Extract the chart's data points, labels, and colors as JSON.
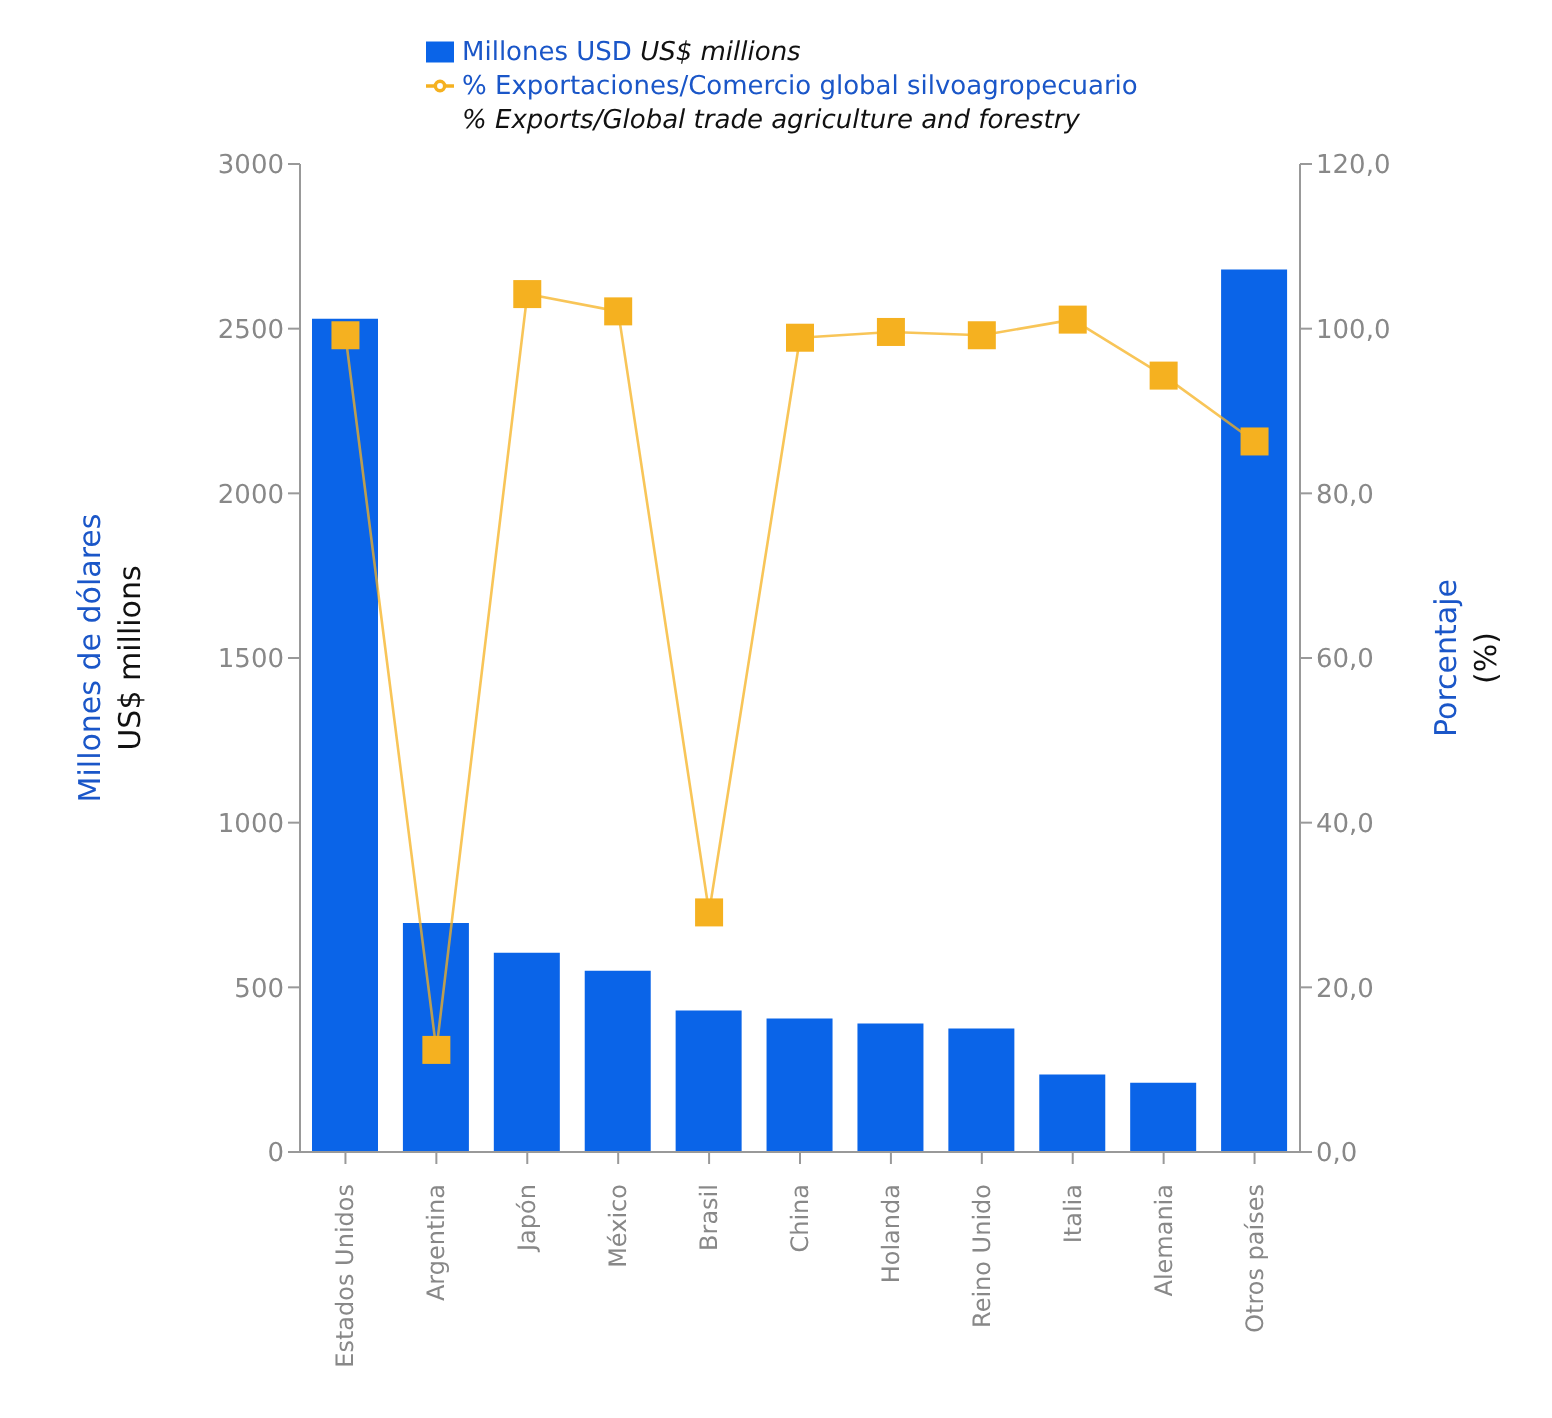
{
  "chart_data": {
    "type": "bar",
    "categories": [
      "Estados Unidos",
      "Argentina",
      "Japón",
      "México",
      "Brasil",
      "China",
      "Holanda",
      "Reino Unido",
      "Italia",
      "Alemania",
      "Otros países"
    ],
    "series": [
      {
        "name": "Millones USD\nUS$ millions",
        "color": "#0a64e8",
        "values": [
          2530,
          695,
          605,
          550,
          430,
          405,
          390,
          375,
          235,
          210,
          2680
        ]
      },
      {
        "name": "% Exportaciones/Comercio global silvoagropecuario\n% Exports/Global trade agriculture and forestry",
        "type": "line",
        "axis": "y2",
        "color": "#f5b120",
        "marker": "square",
        "values": [
          99.2,
          12.4,
          104.2,
          102.1,
          29.1,
          98.9,
          99.6,
          99.2,
          101.1,
          94.3,
          86.3
        ]
      }
    ],
    "ylabel": "Millones de dólares\nUS$ millions",
    "y2label": "Porcentaje\n(%)",
    "ylim": [
      0,
      3000
    ],
    "yticks": [
      0,
      500,
      1000,
      1500,
      2000,
      2500,
      3000
    ],
    "y2lim": [
      0,
      120
    ],
    "y2ticks": [
      {
        "value": 0,
        "label": "0,0"
      },
      {
        "value": 20,
        "label": "20,0"
      },
      {
        "value": 40,
        "label": "40,0"
      },
      {
        "value": 60,
        "label": "60,0"
      },
      {
        "value": 80,
        "label": "80,0"
      },
      {
        "value": 100,
        "label": "100,0"
      },
      {
        "value": 120,
        "label": "120,0"
      }
    ],
    "legend": "top",
    "grid": false
  }
}
